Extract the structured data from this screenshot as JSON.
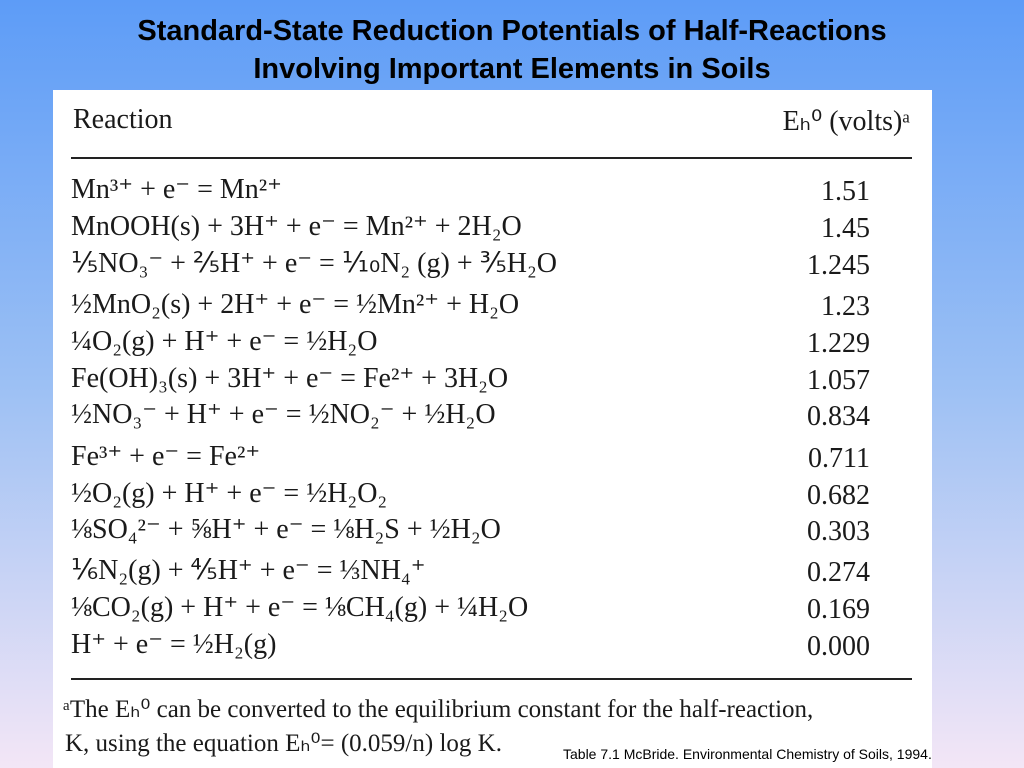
{
  "title": {
    "line1": "Standard-State Reduction Potentials of Half-Reactions",
    "line2": "Involving Important Elements in Soils"
  },
  "table": {
    "header_reaction": "Reaction",
    "header_potential": "Eₕ⁰ (volts)ᵃ",
    "rows": [
      {
        "reaction": "Mn³⁺ + e⁻ = Mn²⁺",
        "value": "1.51"
      },
      {
        "reaction": "MnOOH(s) + 3H⁺ + e⁻ = Mn²⁺ + 2H₂O",
        "value": "1.45"
      },
      {
        "reaction": "⅕NO₃⁻ + ⅖H⁺ + e⁻ = ⅒N₂ (g) + ⅗H₂O",
        "value": "1.245"
      },
      {
        "reaction": "½MnO₂(s) + 2H⁺ + e⁻ = ½Mn²⁺ + H₂O",
        "value": "1.23"
      },
      {
        "reaction": "¼O₂(g) + H⁺ + e⁻ = ½H₂O",
        "value": "1.229"
      },
      {
        "reaction": "Fe(OH)₃(s) + 3H⁺ + e⁻ = Fe²⁺ + 3H₂O",
        "value": "1.057"
      },
      {
        "reaction": "½NO₃⁻ + H⁺ + e⁻ = ½NO₂⁻ + ½H₂O",
        "value": "0.834"
      },
      {
        "reaction": "Fe³⁺ + e⁻ = Fe²⁺",
        "value": "0.711"
      },
      {
        "reaction": "½O₂(g) + H⁺ + e⁻ = ½H₂O₂",
        "value": "0.682"
      },
      {
        "reaction": "⅛SO₄²⁻ + ⅝H⁺ + e⁻ = ⅛H₂S + ½H₂O",
        "value": "0.303"
      },
      {
        "reaction": "⅙N₂(g) + ⅘H⁺ + e⁻ = ⅓NH₄⁺",
        "value": "0.274"
      },
      {
        "reaction": "⅛CO₂(g) + H⁺ + e⁻ = ⅛CH₄(g) + ¼H₂O",
        "value": "0.169"
      },
      {
        "reaction": "H⁺ + e⁻ = ½H₂(g)",
        "value": "0.000"
      }
    ],
    "footnote_line1": "ᵃThe Eₕ⁰ can be converted to the equilibrium constant for the half-reaction,",
    "footnote_line2": "K, using the equation Eₕ⁰= (0.059/n) log K."
  },
  "source": "Table 7.1 McBride. Environmental Chemistry of Soils, 1994."
}
